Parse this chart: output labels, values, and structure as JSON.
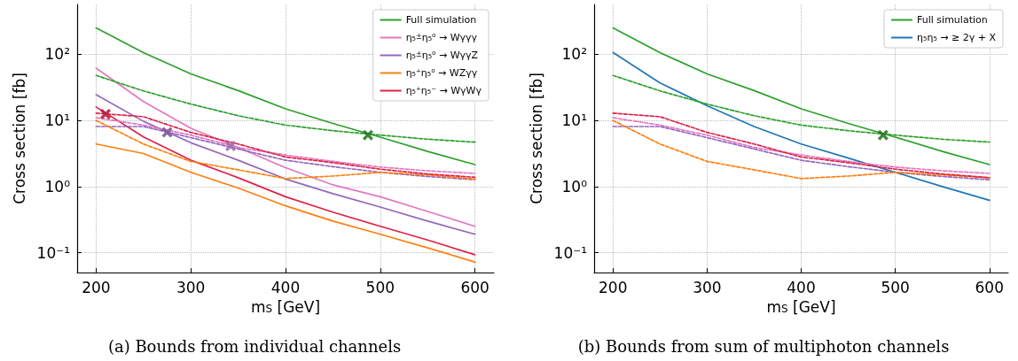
{
  "chart_data": [
    {
      "type": "line",
      "xlabel": "m$_{S}$ [GeV]",
      "ylabel": "Cross section [fb]",
      "annotations": [
        "(a) Bounds from individual channels"
      ],
      "log": "y",
      "grid": true,
      "legend": "top right",
      "marker": "none",
      "line_style": "solid",
      "xlim": [
        180,
        620
      ],
      "xticks": [
        200,
        300,
        400,
        500,
        600
      ],
      "ylim": [
        0.05,
        570
      ],
      "yticks": [
        {
          "value": 0.1,
          "label": "10⁻¹"
        },
        {
          "value": 1,
          "label": "10⁰"
        },
        {
          "value": 10,
          "label": "10¹"
        },
        {
          "value": 100,
          "label": "10²"
        }
      ],
      "x": [
        200,
        250,
        300,
        350,
        400,
        450,
        500,
        550,
        600
      ],
      "series": [
        {
          "name": "Full simulation",
          "color": "#2ca02c",
          "values": [
            251,
            106,
            50.7,
            28.3,
            15,
            9,
            5.6,
            3.4,
            2.15
          ]
        },
        {
          "name": "η₅$^{±}$η₅⁰ → Wγγγ",
          "color": "#e377c2",
          "values": [
            62,
            19.3,
            7.6,
            3.9,
            1.93,
            1.06,
            0.7,
            0.42,
            0.25
          ]
        },
        {
          "name": "η₅$^{±}$η₅⁰ → WγγZ",
          "color": "#9467bd",
          "values": [
            24.6,
            9.7,
            4.6,
            2.5,
            1.3,
            0.78,
            0.49,
            0.3,
            0.19
          ]
        },
        {
          "name": "η₅⁺η₅⁰ → WZγγ",
          "color": "#ff7f0e",
          "values": [
            4.4,
            3.16,
            1.64,
            0.95,
            0.51,
            0.3,
            0.19,
            0.118,
            0.072
          ]
        },
        {
          "name": "η₅⁺η₅⁻ → WγWγ",
          "color": "#dc2348",
          "values": [
            16,
            5.65,
            2.5,
            1.36,
            0.7,
            0.41,
            0.25,
            0.155,
            0.093
          ]
        },
        {
          "color": "#2ca02c",
          "line_style": "dashed",
          "values": [
            48,
            28,
            17.7,
            11.8,
            8.5,
            7,
            6,
            5.2,
            4.7
          ]
        },
        {
          "color": "#e377c2",
          "line_style": "dashed",
          "values": [
            11,
            8.5,
            6,
            3.9,
            3,
            2.4,
            1.97,
            1.73,
            1.58
          ]
        },
        {
          "color": "#9467bd",
          "line_style": "dashed",
          "values": [
            8.1,
            8.1,
            5.5,
            3.7,
            2.5,
            2,
            1.64,
            1.42,
            1.27
          ]
        },
        {
          "color": "#ff7f0e",
          "line_style": "dashed",
          "values": [
            10,
            4.4,
            2.4,
            1.79,
            1.32,
            1.44,
            1.64,
            1.5,
            1.3
          ]
        },
        {
          "color": "#dc2348",
          "line_style": "dashed",
          "values": [
            12.9,
            11.4,
            6.6,
            4.4,
            2.8,
            2.3,
            1.83,
            1.55,
            1.38
          ]
        },
        {
          "type": "scatter",
          "marker": "cross",
          "color": "#b0203f",
          "x": [
            210
          ],
          "values": [
            12.5
          ]
        },
        {
          "type": "scatter",
          "marker": "cross",
          "color": "#7e5a9b",
          "x": [
            275
          ],
          "values": [
            6.6
          ]
        },
        {
          "type": "scatter",
          "marker": "cross",
          "color": "#a070b0",
          "x": [
            342
          ],
          "values": [
            4.1
          ]
        },
        {
          "type": "scatter",
          "marker": "cross",
          "color": "#2a7a2a",
          "x": [
            487
          ],
          "values": [
            6
          ]
        }
      ]
    },
    {
      "type": "line",
      "xlabel": "m$_{S}$ [GeV]",
      "ylabel": "Cross section [fb]",
      "annotations": [
        "(b) Bounds from sum of multiphoton channels"
      ],
      "log": "y",
      "grid": true,
      "legend": "top right",
      "marker": "none",
      "line_style": "solid",
      "xlim": [
        180,
        620
      ],
      "xticks": [
        200,
        300,
        400,
        500,
        600
      ],
      "ylim": [
        0.05,
        570
      ],
      "yticks": [
        {
          "value": 0.1,
          "label": "10⁻¹"
        },
        {
          "value": 1,
          "label": "10⁰"
        },
        {
          "value": 10,
          "label": "10¹"
        },
        {
          "value": 100,
          "label": "10²"
        }
      ],
      "x": [
        200,
        250,
        300,
        350,
        400,
        450,
        500,
        550,
        600
      ],
      "series": [
        {
          "name": "Full simulation",
          "color": "#2ca02c",
          "values": [
            251,
            106,
            50.7,
            28.3,
            15,
            9,
            5.6,
            3.4,
            2.15
          ]
        },
        {
          "name": "η₅η₅ → ≥ 2γ + X",
          "color": "#1f77b4",
          "values": [
            107,
            37,
            16.7,
            8.1,
            4.4,
            2.7,
            1.64,
            1,
            0.62
          ]
        },
        {
          "color": "#2ca02c",
          "line_style": "dashed",
          "values": [
            48,
            28,
            17.7,
            11.8,
            8.5,
            7,
            6,
            5.2,
            4.7
          ]
        },
        {
          "color": "#e377c2",
          "line_style": "dashed",
          "values": [
            11,
            8.5,
            6,
            3.9,
            3,
            2.4,
            1.97,
            1.73,
            1.58
          ]
        },
        {
          "color": "#9467bd",
          "line_style": "dashed",
          "values": [
            8.1,
            8.1,
            5.5,
            3.7,
            2.5,
            2,
            1.64,
            1.42,
            1.27
          ]
        },
        {
          "color": "#ff7f0e",
          "line_style": "dashed",
          "values": [
            10,
            4.4,
            2.4,
            1.79,
            1.32,
            1.44,
            1.64,
            1.5,
            1.36
          ]
        },
        {
          "color": "#dc2348",
          "line_style": "dashed",
          "values": [
            12.9,
            11.4,
            6.6,
            4.4,
            2.8,
            2.3,
            1.83,
            1.55,
            1.36
          ]
        },
        {
          "type": "scatter",
          "marker": "cross",
          "color": "#2a7a2a",
          "x": [
            487
          ],
          "values": [
            6
          ]
        }
      ]
    }
  ]
}
